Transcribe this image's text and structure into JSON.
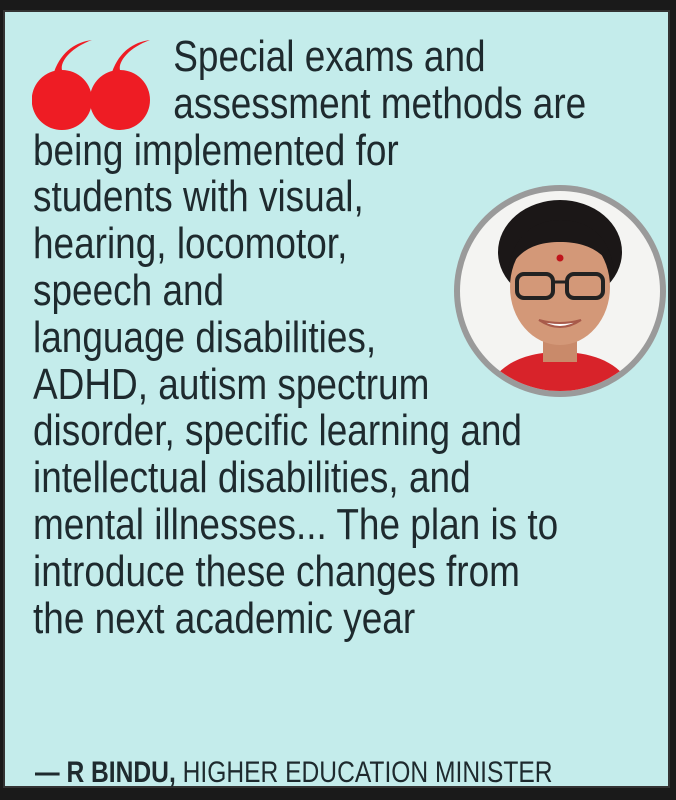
{
  "quote": {
    "lines": [
      "Special exams and",
      "assessment methods are",
      "being implemented for",
      "students with visual,",
      "hearing, locomotor,",
      "speech and",
      "language disabilities,",
      "ADHD, autism spectrum",
      "disorder, specific learning and",
      "intellectual disabilities, and",
      "mental illnesses... The plan is to",
      "introduce these changes from",
      "the next academic year"
    ]
  },
  "attribution": {
    "dash": "—",
    "name": "R BINDU,",
    "title": "HIGHER EDUCATION MINISTER"
  },
  "icons": {
    "quote": "open-quote-icon",
    "photo": "portrait-photo"
  },
  "colors": {
    "background": "#c4eceb",
    "quote_mark": "#ee1c24",
    "text": "#1e2a2e"
  }
}
